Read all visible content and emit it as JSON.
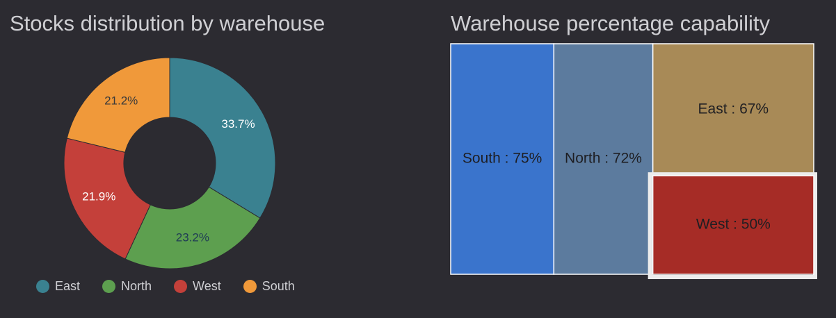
{
  "chart_data": [
    {
      "type": "pie",
      "variant": "donut",
      "title": "Stocks distribution by warehouse",
      "legend_position": "bottom",
      "slices": [
        {
          "label": "East",
          "value": 33.7,
          "display": "33.7%",
          "color": "#3a8190",
          "label_color": "#ffffff"
        },
        {
          "label": "North",
          "value": 23.2,
          "display": "23.2%",
          "color": "#5d9f4f",
          "label_color": "#1f3b55"
        },
        {
          "label": "West",
          "value": 21.9,
          "display": "21.9%",
          "color": "#c4403a",
          "label_color": "#ffffff"
        },
        {
          "label": "South",
          "value": 21.2,
          "display": "21.2%",
          "color": "#f0993a",
          "label_color": "#3a3a3a"
        }
      ]
    },
    {
      "type": "treemap",
      "title": "Warehouse percentage capability",
      "cells": [
        {
          "label": "South : 75%",
          "name": "South",
          "value": 75,
          "color": "#3a74cc"
        },
        {
          "label": "North : 72%",
          "name": "North",
          "value": 72,
          "color": "#5c7b9e"
        },
        {
          "label": "East : 67%",
          "name": "East",
          "value": 67,
          "color": "#a88a57"
        },
        {
          "label": "West : 50%",
          "name": "West",
          "value": 50,
          "color": "#a62c26",
          "highlighted": true
        }
      ]
    }
  ]
}
